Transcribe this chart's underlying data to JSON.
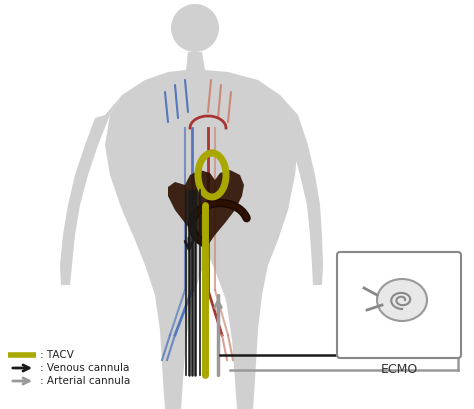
{
  "bg_color": "#ffffff",
  "body_color": "#d0d0d0",
  "tacv_color": "#a8a800",
  "venous_color": "#1a1a1a",
  "arterial_color": "#999999",
  "heart_color": "#2d1000",
  "vein_color": "#5577bb",
  "artery_color": "#cc8877",
  "ecmo_box_color": "#888888",
  "legend_tacv": "TACV",
  "legend_venous": "Venous cannula",
  "legend_arterial": "Arterial cannula",
  "ecmo_label": "ECMO"
}
